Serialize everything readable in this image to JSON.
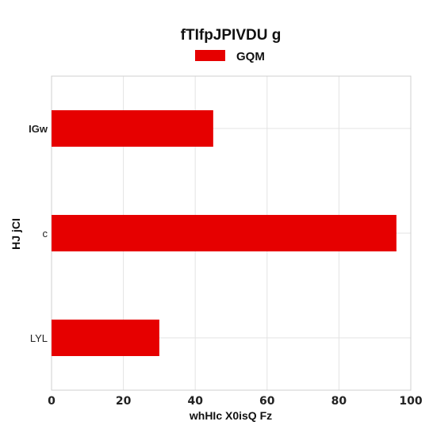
{
  "chart_data": {
    "type": "bar",
    "orientation": "horizontal",
    "title": "fTIfpJPIVDU g",
    "xlabel": "whHIc X0isQ Fz",
    "ylabel": "HJ  jCI",
    "categories": [
      "IGw",
      "c",
      "LYL"
    ],
    "series": [
      {
        "name": "GQM",
        "values": [
          45,
          96,
          30
        ]
      }
    ],
    "xlim": [
      0,
      100
    ],
    "xticks": [
      0,
      20,
      40,
      60,
      80,
      100
    ],
    "grid": true,
    "legend": "top",
    "colors": {
      "series": "#e60000"
    }
  }
}
